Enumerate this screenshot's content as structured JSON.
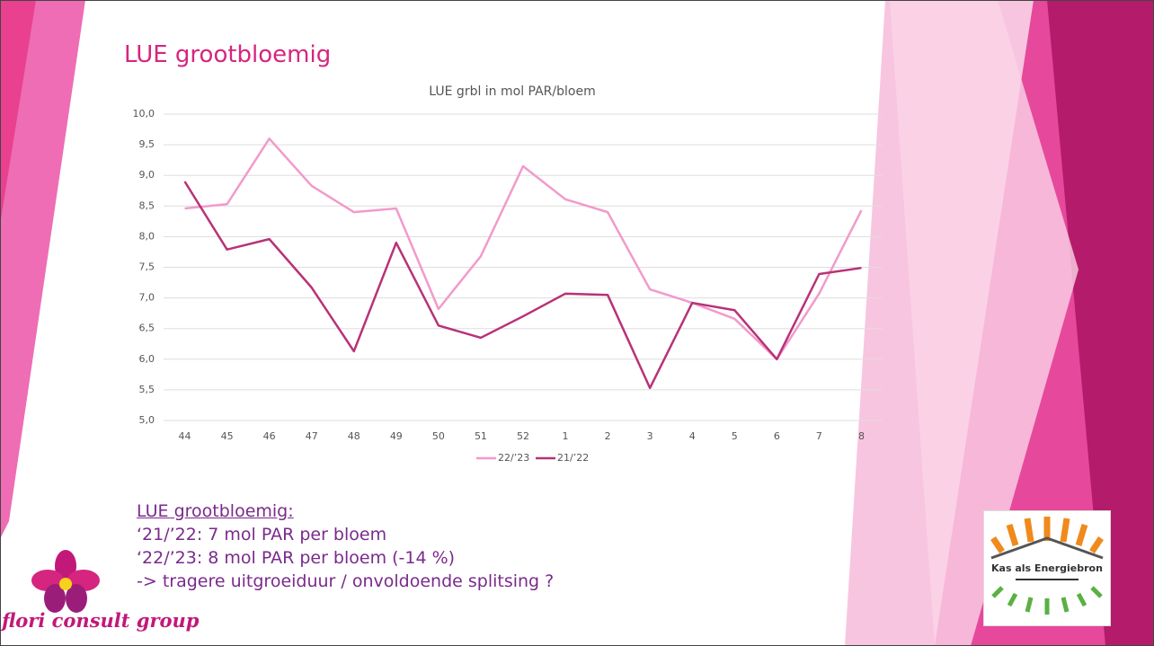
{
  "title": "LUE grootbloemig",
  "chart_data": {
    "type": "line",
    "title": "LUE grbl in mol PAR/bloem",
    "categories": [
      "44",
      "45",
      "46",
      "47",
      "48",
      "49",
      "50",
      "51",
      "52",
      "1",
      "2",
      "3",
      "4",
      "5",
      "6",
      "7",
      "8"
    ],
    "series": [
      {
        "name": "22/’23",
        "color": "#f29acb",
        "values": [
          8.46,
          8.53,
          9.6,
          8.83,
          8.4,
          8.46,
          6.82,
          7.68,
          9.15,
          8.61,
          8.4,
          7.14,
          6.92,
          6.66,
          6.0,
          7.07,
          8.43
        ]
      },
      {
        "name": "21/’22",
        "color": "#b83277",
        "values": [
          8.9,
          7.79,
          7.96,
          7.17,
          6.13,
          7.9,
          6.55,
          6.35,
          6.7,
          7.07,
          7.05,
          5.53,
          6.92,
          6.8,
          6.0,
          7.39,
          7.49
        ]
      }
    ],
    "ylim": [
      5,
      10
    ],
    "yticks": [
      {
        "value": 5,
        "label": "5,0"
      },
      {
        "value": 5.5,
        "label": "5,5"
      },
      {
        "value": 6,
        "label": "6,0"
      },
      {
        "value": 6.5,
        "label": "6,5"
      },
      {
        "value": 7,
        "label": "7,0"
      },
      {
        "value": 7.5,
        "label": "7,5"
      },
      {
        "value": 8,
        "label": "8,0"
      },
      {
        "value": 8.5,
        "label": "8,5"
      },
      {
        "value": 9,
        "label": "9,0"
      },
      {
        "value": 9.5,
        "label": "9,5"
      },
      {
        "value": 10,
        "label": "10,0"
      }
    ],
    "grid": true,
    "legend": "bottom"
  },
  "notes": {
    "heading": "LUE grootbloemig:",
    "lines": [
      "‘21/’22: 7 mol PAR per bloem",
      "‘22/’23: 8 mol PAR per bloem (-14 %)",
      "-> tragere uitgroeiduur / onvoldoende splitsing ?"
    ]
  },
  "logos": {
    "flori": "flori consult group",
    "kas": "Kas als Energiebron"
  }
}
